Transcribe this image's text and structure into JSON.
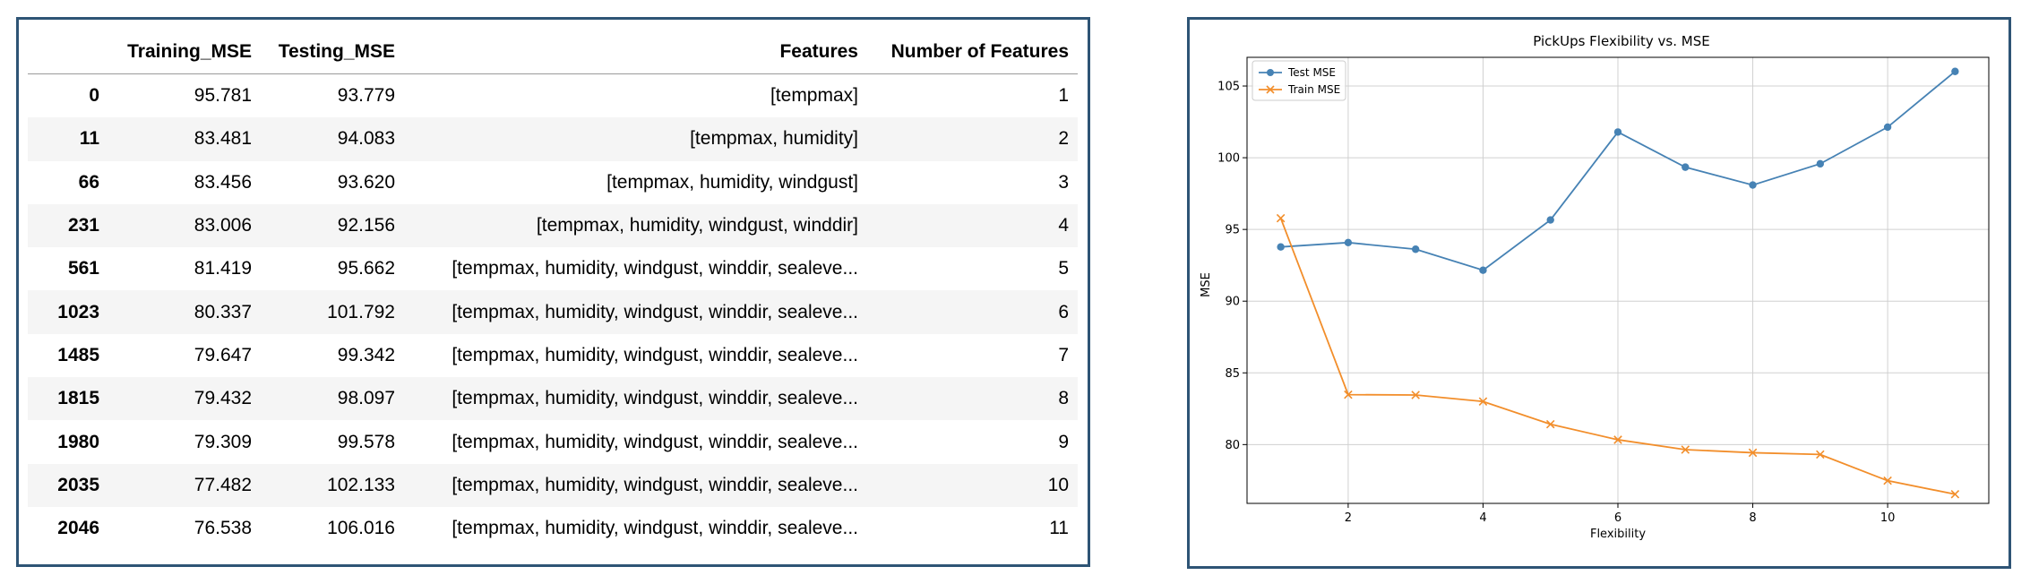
{
  "table": {
    "columns": [
      "",
      "Training_MSE",
      "Testing_MSE",
      "Features",
      "Number of Features"
    ],
    "rows": [
      {
        "index": "0",
        "training_mse": "95.781",
        "testing_mse": "93.779",
        "features": "[tempmax]",
        "num_features": "1"
      },
      {
        "index": "11",
        "training_mse": "83.481",
        "testing_mse": "94.083",
        "features": "[tempmax, humidity]",
        "num_features": "2"
      },
      {
        "index": "66",
        "training_mse": "83.456",
        "testing_mse": "93.620",
        "features": "[tempmax, humidity, windgust]",
        "num_features": "3"
      },
      {
        "index": "231",
        "training_mse": "83.006",
        "testing_mse": "92.156",
        "features": "[tempmax, humidity, windgust, winddir]",
        "num_features": "4"
      },
      {
        "index": "561",
        "training_mse": "81.419",
        "testing_mse": "95.662",
        "features": "[tempmax, humidity, windgust, winddir, sealeve...",
        "num_features": "5"
      },
      {
        "index": "1023",
        "training_mse": "80.337",
        "testing_mse": "101.792",
        "features": "[tempmax, humidity, windgust, winddir, sealeve...",
        "num_features": "6"
      },
      {
        "index": "1485",
        "training_mse": "79.647",
        "testing_mse": "99.342",
        "features": "[tempmax, humidity, windgust, winddir, sealeve...",
        "num_features": "7"
      },
      {
        "index": "1815",
        "training_mse": "79.432",
        "testing_mse": "98.097",
        "features": "[tempmax, humidity, windgust, winddir, sealeve...",
        "num_features": "8"
      },
      {
        "index": "1980",
        "training_mse": "79.309",
        "testing_mse": "99.578",
        "features": "[tempmax, humidity, windgust, winddir, sealeve...",
        "num_features": "9"
      },
      {
        "index": "2035",
        "training_mse": "77.482",
        "testing_mse": "102.133",
        "features": "[tempmax, humidity, windgust, winddir, sealeve...",
        "num_features": "10"
      },
      {
        "index": "2046",
        "training_mse": "76.538",
        "testing_mse": "106.016",
        "features": "[tempmax, humidity, windgust, winddir, sealeve...",
        "num_features": "11"
      }
    ]
  },
  "chart_data": {
    "type": "line",
    "title": "PickUps Flexibility vs. MSE",
    "xlabel": "Flexibility",
    "ylabel": "MSE",
    "x": [
      1,
      2,
      3,
      4,
      5,
      6,
      7,
      8,
      9,
      10,
      11
    ],
    "series": [
      {
        "name": "Test MSE",
        "marker": "circle",
        "color": "#4682b4",
        "values": [
          93.779,
          94.083,
          93.62,
          92.156,
          95.662,
          101.792,
          99.342,
          98.097,
          99.578,
          102.133,
          106.016
        ]
      },
      {
        "name": "Train MSE",
        "marker": "x",
        "color": "#f28e2b",
        "values": [
          95.781,
          83.481,
          83.456,
          83.006,
          81.419,
          80.337,
          79.647,
          79.432,
          79.309,
          77.482,
          76.538
        ]
      }
    ],
    "xlim": [
      0.5,
      11.5
    ],
    "ylim": [
      75.9,
      107.0
    ],
    "xticks": [
      2,
      4,
      6,
      8,
      10
    ],
    "yticks": [
      80,
      85,
      90,
      95,
      100,
      105
    ],
    "grid": true,
    "legend_position": "upper left"
  }
}
